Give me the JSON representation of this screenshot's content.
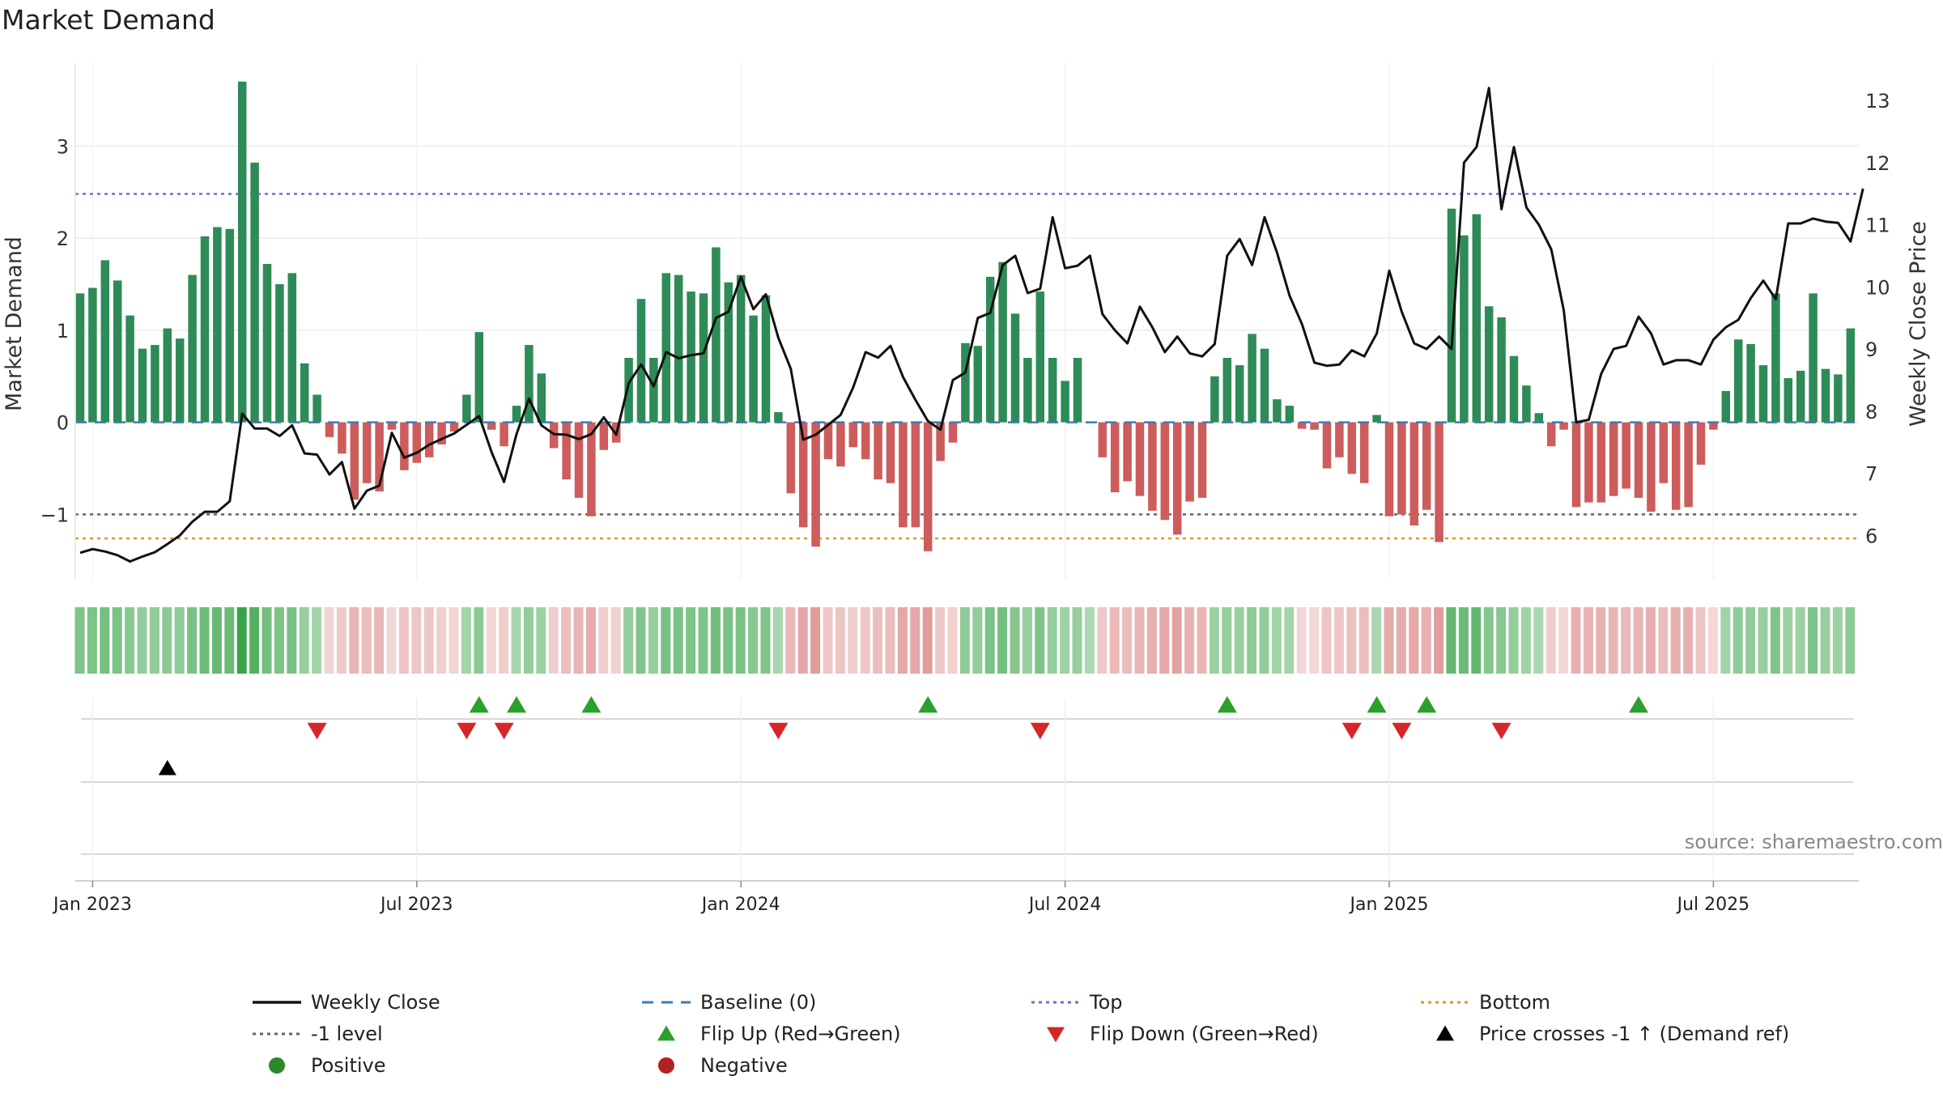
{
  "chart_data": {
    "type": "bar",
    "title": "Market Demand",
    "ylabel_left": "Market Demand",
    "ylabel_right": "Weekly Close Price",
    "ylim_left": [
      -1.7,
      3.9
    ],
    "ylim_right": [
      5.3,
      13.6
    ],
    "yticks_left": [
      {
        "v": 3,
        "label": "3"
      },
      {
        "v": 2,
        "label": "2"
      },
      {
        "v": 1,
        "label": "1"
      },
      {
        "v": 0,
        "label": "0"
      },
      {
        "v": -1,
        "label": "−1"
      }
    ],
    "yticks_right": [
      {
        "v": 13,
        "label": "13"
      },
      {
        "v": 12,
        "label": "12"
      },
      {
        "v": 11,
        "label": "11"
      },
      {
        "v": 10,
        "label": "10"
      },
      {
        "v": 9,
        "label": "9"
      },
      {
        "v": 8,
        "label": "8"
      },
      {
        "v": 7,
        "label": "7"
      },
      {
        "v": 6,
        "label": "6"
      }
    ],
    "x_start": "2022-12-26",
    "week_count": 143,
    "xticks": [
      {
        "week": 1,
        "label": "Jan 2023"
      },
      {
        "week": 27,
        "label": "Jul 2023"
      },
      {
        "week": 53,
        "label": "Jan 2024"
      },
      {
        "week": 79,
        "label": "Jul 2024"
      },
      {
        "week": 105,
        "label": "Jan 2025"
      },
      {
        "week": 131,
        "label": "Jul 2025"
      }
    ],
    "reference_lines": {
      "top": 2.48,
      "minus_one": -1.0,
      "bottom": -1.26,
      "baseline": 0
    },
    "series": [
      {
        "name": "Market Demand",
        "type": "bar",
        "values": [
          1.4,
          1.46,
          1.76,
          1.54,
          1.16,
          0.8,
          0.84,
          1.02,
          0.91,
          1.6,
          2.02,
          2.12,
          2.1,
          3.7,
          2.82,
          1.72,
          1.5,
          1.62,
          0.64,
          0.3,
          -0.16,
          -0.34,
          -0.84,
          -0.66,
          -0.75,
          -0.08,
          -0.52,
          -0.44,
          -0.38,
          -0.24,
          -0.1,
          0.3,
          0.98,
          -0.08,
          -0.26,
          0.18,
          0.84,
          0.53,
          -0.28,
          -0.62,
          -0.82,
          -1.02,
          -0.3,
          -0.22,
          0.7,
          1.34,
          0.7,
          1.62,
          1.6,
          1.42,
          1.4,
          1.9,
          1.52,
          1.6,
          1.16,
          1.38,
          0.11,
          -0.77,
          -1.14,
          -1.35,
          -0.4,
          -0.48,
          -0.27,
          -0.4,
          -0.62,
          -0.66,
          -1.14,
          -1.14,
          -1.4,
          -0.42,
          -0.22,
          0.86,
          0.83,
          1.58,
          1.74,
          1.18,
          0.7,
          1.42,
          0.7,
          0.45,
          0.7,
          0.0,
          -0.38,
          -0.76,
          -0.64,
          -0.8,
          -0.96,
          -1.06,
          -1.22,
          -0.86,
          -0.82,
          0.5,
          0.7,
          0.62,
          0.96,
          0.8,
          0.25,
          0.18,
          -0.07,
          -0.08,
          -0.5,
          -0.38,
          -0.56,
          -0.66,
          0.08,
          -1.02,
          -1.0,
          -1.12,
          -0.95,
          -1.3,
          2.32,
          2.03,
          2.26,
          1.26,
          1.14,
          0.72,
          0.4,
          0.1,
          -0.26,
          -0.08,
          -0.92,
          -0.87,
          -0.87,
          -0.8,
          -0.72,
          -0.82,
          -0.97,
          -0.66,
          -0.95,
          -0.92,
          -0.46,
          -0.08,
          0.34,
          0.9,
          0.85,
          0.62,
          1.4,
          0.48,
          0.56,
          1.4,
          0.58,
          0.52,
          1.02
        ]
      },
      {
        "name": "Weekly Close",
        "type": "line",
        "axis": "right",
        "values": [
          5.72,
          5.78,
          5.74,
          5.68,
          5.58,
          5.66,
          5.73,
          5.86,
          6.0,
          6.22,
          6.38,
          6.38,
          6.55,
          7.96,
          7.72,
          7.72,
          7.6,
          7.77,
          7.32,
          7.3,
          6.98,
          7.18,
          6.43,
          6.72,
          6.8,
          7.65,
          7.25,
          7.33,
          7.46,
          7.55,
          7.64,
          7.78,
          7.92,
          7.34,
          6.86,
          7.63,
          8.2,
          7.77,
          7.63,
          7.62,
          7.55,
          7.63,
          7.9,
          7.62,
          8.45,
          8.75,
          8.4,
          8.95,
          8.85,
          8.9,
          8.93,
          9.5,
          9.6,
          10.16,
          9.64,
          9.88,
          9.18,
          8.68,
          7.54,
          7.62,
          7.78,
          7.94,
          8.38,
          8.95,
          8.86,
          9.05,
          8.55,
          8.18,
          7.84,
          7.7,
          8.5,
          8.62,
          9.5,
          9.58,
          10.35,
          10.5,
          9.9,
          9.97,
          11.12,
          10.3,
          10.34,
          10.5,
          9.56,
          9.3,
          9.09,
          9.68,
          9.35,
          8.95,
          9.2,
          8.93,
          8.88,
          9.08,
          10.5,
          10.77,
          10.35,
          11.12,
          10.55,
          9.86,
          9.4,
          8.78,
          8.73,
          8.75,
          8.98,
          8.88,
          9.25,
          10.26,
          9.6,
          9.09,
          9.0,
          9.2,
          9.0,
          12.0,
          12.25,
          13.2,
          11.25,
          12.25,
          11.28,
          11.0,
          10.6,
          9.62,
          7.82,
          7.86,
          8.6,
          9.0,
          9.05,
          9.52,
          9.25,
          8.75,
          8.82,
          8.82,
          8.75,
          9.15,
          9.35,
          9.47,
          9.82,
          10.1,
          9.8,
          11.02,
          11.02,
          11.1,
          11.05,
          11.03,
          10.73,
          11.58
        ]
      }
    ],
    "flip_up_weeks": [
      32,
      35,
      41,
      68,
      92,
      104,
      108,
      125
    ],
    "flip_down_weeks": [
      19,
      31,
      34,
      56,
      77,
      102,
      106,
      114
    ],
    "price_cross_weeks": [
      7
    ],
    "source": "source: sharemaestro.com",
    "legend": [
      {
        "label": "Weekly Close",
        "kind": "line",
        "color": "#111111"
      },
      {
        "label": "Baseline (0)",
        "kind": "dash",
        "color": "#3b7bbf"
      },
      {
        "label": "Top",
        "kind": "dot",
        "color": "#6f6fd6"
      },
      {
        "label": "Bottom",
        "kind": "dot",
        "color": "#d89a2a"
      },
      {
        "label": "-1 level",
        "kind": "dot",
        "color": "#666666"
      },
      {
        "label": "Flip Up (Red→Green)",
        "kind": "tri-up",
        "color": "#2ca02c"
      },
      {
        "label": "Flip Down (Green→Red)",
        "kind": "tri-down",
        "color": "#d62728"
      },
      {
        "label": "Price crosses -1 ↑ (Demand ref)",
        "kind": "tri-up",
        "color": "#000000"
      },
      {
        "label": "Positive",
        "kind": "circle",
        "color": "#2a8a2a"
      },
      {
        "label": "Negative",
        "kind": "circle",
        "color": "#b22222"
      }
    ],
    "colors": {
      "positive_bar": "#2e8b57",
      "negative_bar": "#cd5c5c",
      "positive_heat": "#2e9e3e",
      "negative_heat": "#c84848"
    }
  }
}
